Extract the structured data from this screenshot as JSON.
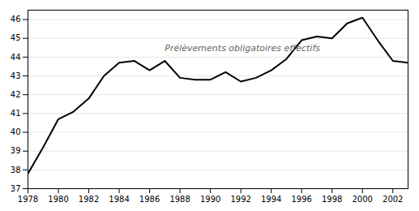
{
  "chart_data": {
    "type": "line",
    "x": [
      1978,
      1979,
      1980,
      1981,
      1982,
      1983,
      1984,
      1985,
      1986,
      1987,
      1988,
      1989,
      1990,
      1991,
      1992,
      1993,
      1994,
      1995,
      1996,
      1997,
      1998,
      1999,
      2000,
      2001,
      2002,
      2003
    ],
    "values": [
      37.8,
      39.2,
      40.7,
      41.1,
      41.8,
      43.0,
      43.7,
      43.8,
      43.3,
      43.8,
      42.9,
      42.8,
      42.8,
      43.2,
      42.7,
      42.9,
      43.3,
      43.9,
      44.9,
      45.1,
      45.0,
      45.8,
      46.1,
      44.9,
      43.8,
      43.7
    ],
    "color": "#000000",
    "xlim": [
      1978,
      2003
    ],
    "xticks": [
      1978,
      1980,
      1982,
      1984,
      1986,
      1988,
      1990,
      1992,
      1994,
      1996,
      1998,
      2000,
      2002
    ],
    "ylim": [
      37,
      46.5
    ],
    "yticks": [
      37,
      38,
      39,
      40,
      41,
      42,
      43,
      44,
      45,
      46
    ],
    "grid": true,
    "annotations": [
      {
        "text": "Prélèvements obligatoires effectifs",
        "x": 1987,
        "y": 44.3
      }
    ]
  }
}
